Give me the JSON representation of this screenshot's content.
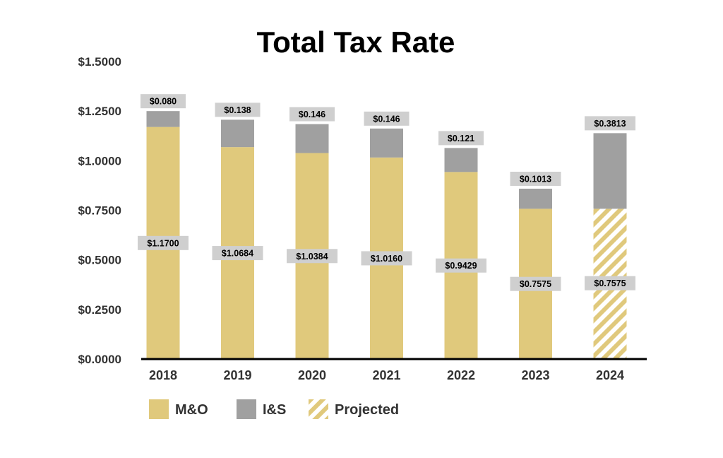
{
  "chart_data": {
    "type": "bar",
    "stacked": true,
    "title": "Total Tax Rate",
    "xlabel": "",
    "ylabel": "",
    "ylim": [
      0,
      1.5
    ],
    "yticks": [
      "$0.0000",
      "$0.2500",
      "$0.5000",
      "$0.7500",
      "$1.0000",
      "$1.2500",
      "$1.5000"
    ],
    "ytick_values": [
      0,
      0.25,
      0.5,
      0.75,
      1.0,
      1.25,
      1.5
    ],
    "categories": [
      "2018",
      "2019",
      "2020",
      "2021",
      "2022",
      "2023",
      "2024"
    ],
    "series": [
      {
        "name": "M&O",
        "values": [
          1.17,
          1.0684,
          1.0384,
          1.016,
          0.9429,
          0.7575,
          0.7575
        ],
        "labels": [
          "$1.1700",
          "$1.0684",
          "$1.0384",
          "$1.0160",
          "$0.9429",
          "$0.7575",
          "$0.7575"
        ],
        "projected": [
          false,
          false,
          false,
          false,
          false,
          false,
          true
        ],
        "color": "#e0c97c"
      },
      {
        "name": "I&S",
        "values": [
          0.08,
          0.138,
          0.146,
          0.146,
          0.121,
          0.1013,
          0.3813
        ],
        "labels": [
          "$0.080",
          "$0.138",
          "$0.146",
          "$0.146",
          "$0.121",
          "$0.1013",
          "$0.3813"
        ],
        "color": "#a0a0a0"
      }
    ],
    "legend": [
      {
        "name": "M&O",
        "color": "#e0c97c",
        "pattern": "solid"
      },
      {
        "name": "I&S",
        "color": "#a0a0a0",
        "pattern": "solid"
      },
      {
        "name": "Projected",
        "color": "#e0c97c",
        "pattern": "hatch"
      }
    ],
    "legend_position": "bottom-left",
    "grid": false,
    "label_box_color": "#cfcfcf"
  }
}
